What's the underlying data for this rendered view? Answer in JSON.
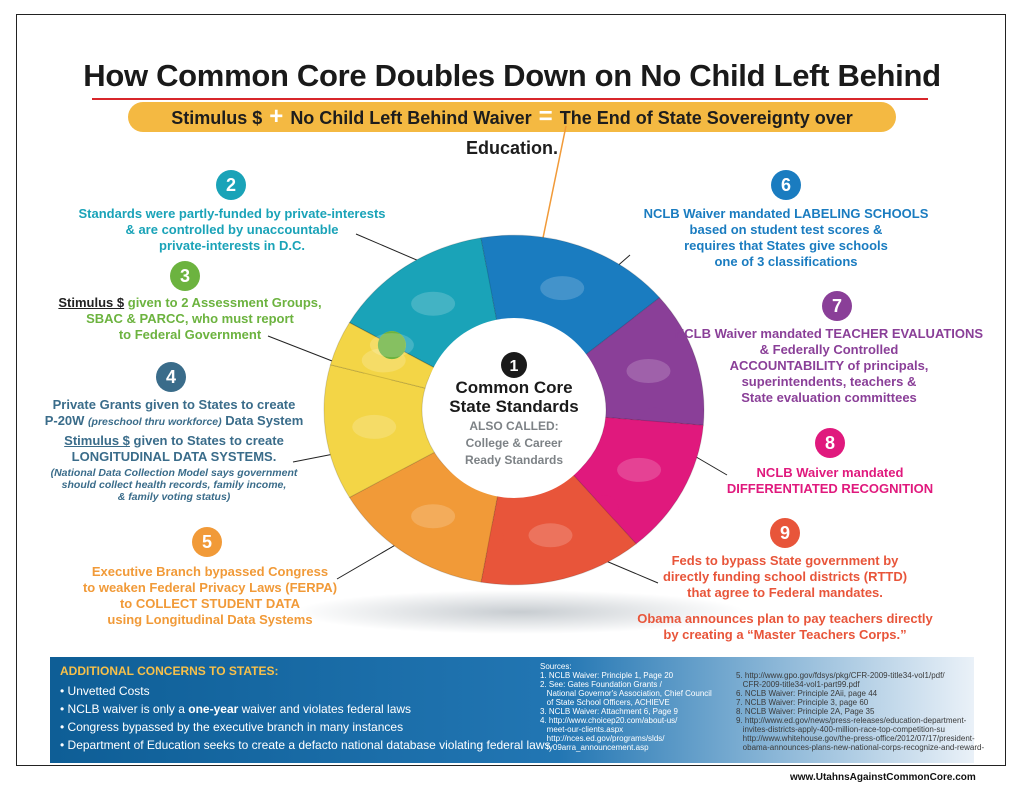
{
  "title": "How Common Core Doubles Down on No Child Left Behind",
  "banner": {
    "part1": "Stimulus $",
    "plus": "+",
    "part2": "No Child Left Behind Waiver",
    "equals": "=",
    "part3": "The End of State Sovereignty over Education."
  },
  "center": {
    "number": "1",
    "title_line1": "Common Core",
    "title_line2": "State Standards",
    "also_line1": "ALSO CALLED:",
    "also_line2": "College & Career",
    "also_line3": "Ready Standards"
  },
  "items": {
    "i2": {
      "number": "2",
      "l1": "Standards were partly-funded by private-interests",
      "l2": "& are controlled by unaccountable",
      "l3": "private-interests in D.C."
    },
    "i3": {
      "number": "3",
      "u1": "Stimulus $",
      "l1": " given to 2 Assessment Groups,",
      "l2": "SBAC & PARCC, who must report",
      "l3": "to Federal Government"
    },
    "i4": {
      "number": "4",
      "l1": "Private Grants given to States to create",
      "l2a": "P-20W ",
      "l2b": "(preschool thru workforce)",
      "l2c": " Data System",
      "u1": "Stimulus $",
      "l3": " given to States to create",
      "l4": "LONGITUDINAL DATA SYSTEMS.",
      "n1": "(National Data Collection Model says government",
      "n2": "should collect health records, family income,",
      "n3": "& family voting status)"
    },
    "i5": {
      "number": "5",
      "l1": "Executive Branch bypassed Congress",
      "l2": "to weaken Federal Privacy Laws (FERPA)",
      "l3": "to COLLECT STUDENT DATA",
      "l4": "using Longitudinal Data Systems"
    },
    "i6": {
      "number": "6",
      "l1": "NCLB Waiver mandated LABELING SCHOOLS",
      "l2": "based on student test scores &",
      "l3": "requires that States give schools",
      "l4": "one of 3 classifications"
    },
    "i7": {
      "number": "7",
      "l1": "NCLB Waiver mandated TEACHER EVALUATIONS",
      "l2": "& Federally Controlled",
      "l3": "ACCOUNTABILITY of principals,",
      "l4": "superintendents, teachers &",
      "l5": "State evaluation committees"
    },
    "i8": {
      "number": "8",
      "l1": "NCLB Waiver mandated",
      "l2": "DIFFERENTIATED RECOGNITION"
    },
    "i9": {
      "number": "9",
      "l1": "Feds to bypass State government by",
      "l2": "directly funding school districts (RTTD)",
      "l3": "that agree to Federal mandates.",
      "l4": "Obama announces plan to pay teachers directly",
      "l5": "by creating a “Master Teachers Corps.”"
    }
  },
  "concerns": {
    "title": "ADDITIONAL CONCERNS TO STATES:",
    "c1": "Unvetted Costs",
    "c2a": "NCLB waiver is only a ",
    "c2b": "one-year",
    "c2c": " waiver and violates federal laws",
    "c3": "Congress bypassed by the executive branch in many instances",
    "c4": "Department of Education seeks to create a defacto national database violating federal laws"
  },
  "sources": {
    "heading": "Sources:",
    "left": [
      "1. NCLB Waiver: Principle 1, Page 20",
      "2. See: Gates Foundation Grants /",
      "   National Governor's Association, Chief Council",
      "   of State School Officers, ACHIEVE",
      "3. NCLB Waiver: Attachment 6, Page 9",
      "4. http://www.choicep20.com/about-us/",
      "   meet-our-clients.aspx",
      "   http://nces.ed.gov/programs/slds/",
      "   fy09arra_announcement.asp"
    ],
    "right": [
      "5. http://www.gpo.gov/fdsys/pkg/CFR-2009-title34-vol1/pdf/",
      "   CFR-2009-title34-vol1-part99.pdf",
      "6. NCLB Waiver: Principle 2Aii, page 44",
      "7. NCLB Waiver: Principle 3, page 60",
      "8. NCLB Waiver: Principle 2A, Page 35",
      "9. http://www.ed.gov/news/press-releases/education-department-",
      "   invites-districts-apply-400-million-race-top-competition-su",
      "   http://www.whitehouse.gov/the-press-office/2012/07/17/president-",
      "   obama-announces-plans-new-national-corps-recognize-and-reward-"
    ]
  },
  "footer_url": "www.UtahnsAgainstCommonCore.com",
  "colors": {
    "teal": "#1aa3b8",
    "green": "#6cb33f",
    "slate": "#3a6c8a",
    "orange": "#f19a38",
    "blue": "#1a7cc0",
    "purple": "#8a3f98",
    "magenta": "#e0197d",
    "red_orange": "#e8553a"
  }
}
